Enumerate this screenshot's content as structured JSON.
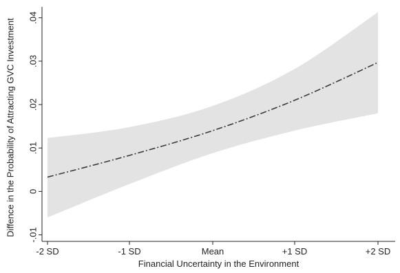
{
  "chart_data": {
    "type": "line",
    "title": "",
    "xlabel": "Financial Uncertainty in the Environment",
    "ylabel": "Diffence in the Probability of Attracting GVC Investment",
    "x_categories": [
      "-2 SD",
      "-1 SD",
      "Mean",
      "+1 SD",
      "+2 SD"
    ],
    "y_ticks": [
      -0.01,
      0,
      0.01,
      0.02,
      0.03,
      0.04
    ],
    "y_tick_labels": [
      "-.01",
      "0",
      ".01",
      ".02",
      ".03",
      ".04"
    ],
    "ylim": [
      -0.0115,
      0.0425
    ],
    "grid": false,
    "legend": "none",
    "series": [
      {
        "style": "dashed",
        "values": [
          0.0033,
          0.0083,
          0.014,
          0.021,
          0.0297
        ],
        "ci_lower": [
          -0.006,
          0.0017,
          0.0088,
          0.014,
          0.018
        ],
        "ci_upper": [
          0.0123,
          0.0148,
          0.0197,
          0.0282,
          0.0413
        ]
      }
    ],
    "colors": {
      "line": "#3a3a3a",
      "ci_band": "#e3e3e3",
      "axis": "#222222"
    }
  }
}
